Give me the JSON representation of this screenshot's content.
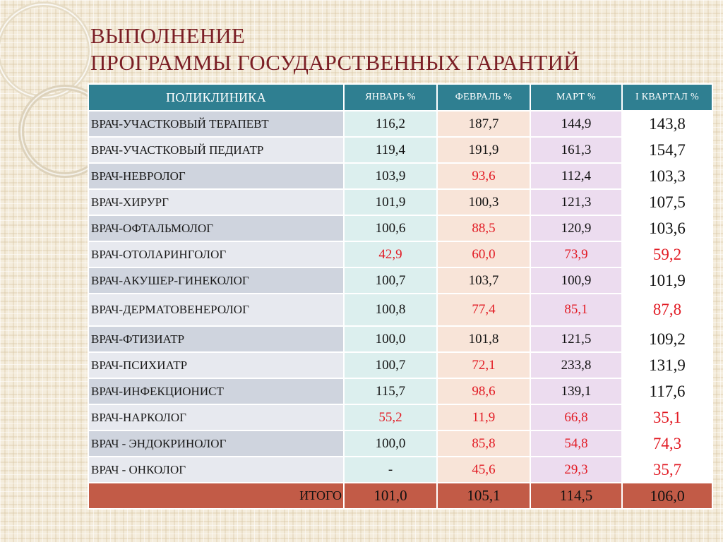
{
  "title": {
    "line1": "ВЫПОЛНЕНИЕ",
    "line2": "ПРОГРАММЫ ГОСУДАРСТВЕННЫХ ГАРАНТИЙ"
  },
  "colors": {
    "title": "#7b1f25",
    "header": "#2f7f91",
    "total_row": "#c25b47",
    "highlight_text": "#e21b24"
  },
  "table": {
    "headers": {
      "name": "ПОЛИКЛИНИКА",
      "jan": "ЯНВАРЬ %",
      "feb": "ФЕВРАЛЬ %",
      "mar": "МАРТ %",
      "q1": "I КВАРТАЛ %"
    },
    "rows": [
      {
        "name": "ВРАЧ-УЧАСТКОВЫЙ ТЕРАПЕВТ",
        "jan": "116,2",
        "feb": "187,7",
        "mar": "144,9",
        "q1": "143,8"
      },
      {
        "name": "ВРАЧ-УЧАСТКОВЫЙ ПЕДИАТР",
        "jan": "119,4",
        "feb": "191,9",
        "mar": "161,3",
        "q1": "154,7"
      },
      {
        "name": "ВРАЧ-НЕВРОЛОГ",
        "jan": "103,9",
        "feb": "93,6",
        "mar": "112,4",
        "q1": "103,3"
      },
      {
        "name": "ВРАЧ-ХИРУРГ",
        "jan": "101,9",
        "feb": "100,3",
        "mar": "121,3",
        "q1": "107,5"
      },
      {
        "name": "ВРАЧ-ОФТАЛЬМОЛОГ",
        "jan": "100,6",
        "feb": "88,5",
        "mar": "120,9",
        "q1": "103,6"
      },
      {
        "name": "ВРАЧ-ОТОЛАРИНГОЛОГ",
        "jan": "42,9",
        "feb": "60,0",
        "mar": "73,9",
        "q1": "59,2"
      },
      {
        "name": "ВРАЧ-АКУШЕР-ГИНЕКОЛОГ",
        "jan": "100,7",
        "feb": "103,7",
        "mar": "100,9",
        "q1": "101,9"
      },
      {
        "name": "ВРАЧ-ДЕРМАТОВЕНЕРОЛОГ",
        "jan": "100,8",
        "feb": "77,4",
        "mar": "85,1",
        "q1": "87,8"
      },
      {
        "name": "ВРАЧ-ФТИЗИАТР",
        "jan": "100,0",
        "feb": "101,8",
        "mar": "121,5",
        "q1": "109,2"
      },
      {
        "name": "ВРАЧ-ПСИХИАТР",
        "jan": "100,7",
        "feb": "72,1",
        "mar": "233,8",
        "q1": "131,9"
      },
      {
        "name": "ВРАЧ-ИНФЕКЦИОНИСТ",
        "jan": "115,7",
        "feb": "98,6",
        "mar": "139,1",
        "q1": "117,6"
      },
      {
        "name": "ВРАЧ-НАРКОЛОГ",
        "jan": "55,2",
        "feb": "11,9",
        "mar": "66,8",
        "q1": "35,1"
      },
      {
        "name": "ВРАЧ - ЭНДОКРИНОЛОГ",
        "jan": "100,0",
        "feb": "85,8",
        "mar": "54,8",
        "q1": "74,3"
      },
      {
        "name": "ВРАЧ - ОНКОЛОГ",
        "jan": "-",
        "feb": "45,6",
        "mar": "29,3",
        "q1": "35,7"
      }
    ],
    "total": {
      "label": "ИТОГО",
      "jan": "101,0",
      "feb": "105,1",
      "mar": "114,5",
      "q1": "106,0"
    }
  }
}
